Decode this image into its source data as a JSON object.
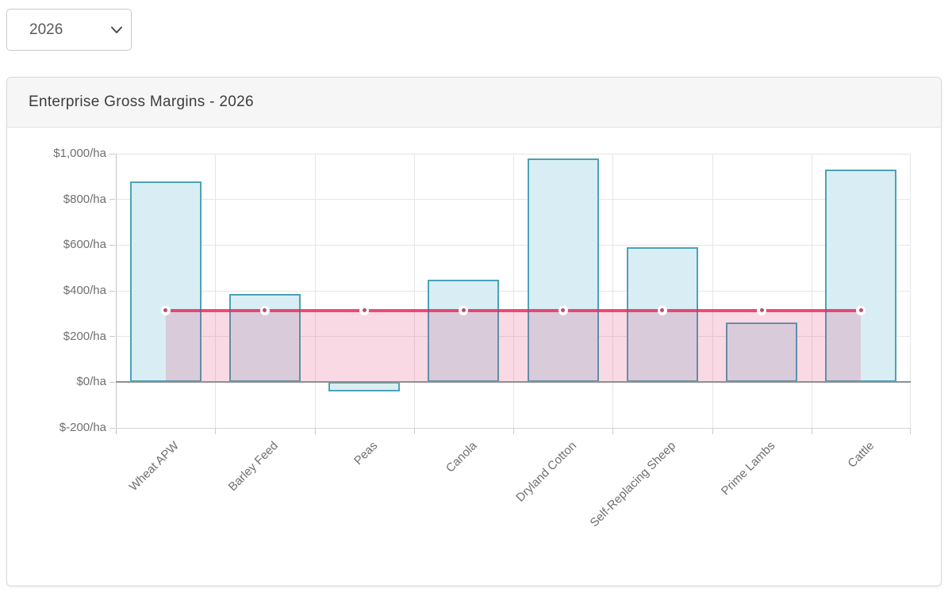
{
  "year_select": {
    "value": "2026",
    "options": [
      "2026"
    ]
  },
  "card": {
    "title": "Enterprise Gross Margins - 2026"
  },
  "chart_data": {
    "type": "bar",
    "title": "Enterprise Gross Margins - 2026",
    "categories": [
      "Wheat APW",
      "Barley Feed",
      "Peas",
      "Canola",
      "Dryland Cotton",
      "Self-Replacing Sheep",
      "Prime Lambs",
      "Cattle"
    ],
    "series": [
      {
        "type": "bar",
        "values": [
          880,
          385,
          -40,
          450,
          980,
          590,
          260,
          930
        ]
      },
      {
        "type": "line",
        "values": [
          315,
          315,
          315,
          315,
          315,
          315,
          315,
          315
        ]
      }
    ],
    "unit": "$/ha",
    "ylim": [
      -200,
      1000
    ],
    "yticks": [
      {
        "value": 1000,
        "label": "$1,000/ha"
      },
      {
        "value": 800,
        "label": "$800/ha"
      },
      {
        "value": 600,
        "label": "$600/ha"
      },
      {
        "value": 400,
        "label": "$400/ha"
      },
      {
        "value": 200,
        "label": "$200/ha"
      },
      {
        "value": 0,
        "label": "$0/ha"
      },
      {
        "value": -200,
        "label": "$-200/ha"
      }
    ],
    "grid": true,
    "legend": "none",
    "colors": {
      "bar_fill": "#d9eef4",
      "bar_border": "#4aa3b8",
      "line": "rgba(230,40,90,0.82)",
      "area_fill": "rgba(224,45,100,0.18)",
      "grid": "#e6e6e6",
      "zero_line": "#8f8f8f",
      "tick_text": "#6f6f6f"
    }
  }
}
